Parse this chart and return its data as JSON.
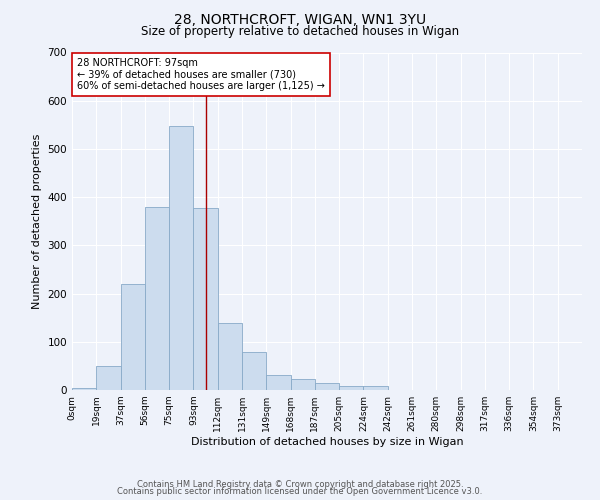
{
  "title1": "28, NORTHCROFT, WIGAN, WN1 3YU",
  "title2": "Size of property relative to detached houses in Wigan",
  "xlabel": "Distribution of detached houses by size in Wigan",
  "ylabel": "Number of detached properties",
  "bar_labels": [
    "0sqm",
    "19sqm",
    "37sqm",
    "56sqm",
    "75sqm",
    "93sqm",
    "112sqm",
    "131sqm",
    "149sqm",
    "168sqm",
    "187sqm",
    "205sqm",
    "224sqm",
    "242sqm",
    "261sqm",
    "280sqm",
    "298sqm",
    "317sqm",
    "336sqm",
    "354sqm",
    "373sqm"
  ],
  "bar_values": [
    5,
    50,
    220,
    380,
    547,
    378,
    140,
    78,
    32,
    22,
    15,
    8,
    8,
    0,
    0,
    0,
    0,
    0,
    0,
    0,
    0
  ],
  "bar_color": "#ccdcee",
  "bar_edge_color": "#88aac8",
  "property_line_x": 5.5,
  "annotation_line1": "28 NORTHCROFT: 97sqm",
  "annotation_line2": "← 39% of detached houses are smaller (730)",
  "annotation_line3": "60% of semi-detached houses are larger (1,125) →",
  "annotation_box_color": "#ffffff",
  "annotation_box_edge": "#cc0000",
  "vline_color": "#aa0000",
  "ylim": [
    0,
    700
  ],
  "yticks": [
    0,
    100,
    200,
    300,
    400,
    500,
    600,
    700
  ],
  "footer1": "Contains HM Land Registry data © Crown copyright and database right 2025.",
  "footer2": "Contains public sector information licensed under the Open Government Licence v3.0.",
  "bg_color": "#eef2fa",
  "grid_color": "#ffffff"
}
